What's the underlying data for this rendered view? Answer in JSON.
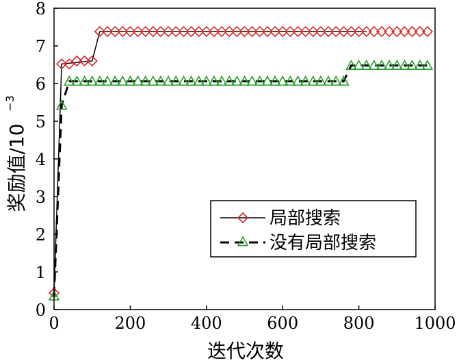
{
  "chart_data": {
    "type": "line",
    "xlabel": "迭代次数",
    "ylabel_main": "奖励值/10",
    "ylabel_exp": "−3",
    "xlim": [
      0,
      1000
    ],
    "ylim": [
      0,
      8
    ],
    "x_ticks": [
      0,
      200,
      400,
      600,
      800,
      1000
    ],
    "y_ticks": [
      0,
      1,
      2,
      3,
      4,
      5,
      6,
      7,
      8
    ],
    "grid": false,
    "legend_position": "center-right",
    "series": [
      {
        "name": "局部搜索",
        "color": "#d62728",
        "marker": "diamond",
        "line_style": "solid",
        "line_color": "#000000",
        "line_points": [
          [
            0,
            0.44
          ],
          [
            20,
            6.52
          ],
          [
            100,
            6.6
          ],
          [
            120,
            7.38
          ],
          [
            820,
            7.38
          ]
        ],
        "marker_points": [
          [
            0,
            0.44
          ],
          [
            20,
            6.52
          ],
          [
            40,
            6.52
          ],
          [
            60,
            6.6
          ],
          [
            80,
            6.6
          ],
          [
            100,
            6.6
          ],
          [
            120,
            7.38
          ],
          [
            140,
            7.38
          ],
          [
            160,
            7.38
          ],
          [
            180,
            7.38
          ],
          [
            200,
            7.38
          ],
          [
            220,
            7.38
          ],
          [
            240,
            7.38
          ],
          [
            260,
            7.38
          ],
          [
            280,
            7.38
          ],
          [
            300,
            7.38
          ],
          [
            320,
            7.38
          ],
          [
            340,
            7.38
          ],
          [
            360,
            7.38
          ],
          [
            380,
            7.38
          ],
          [
            400,
            7.38
          ],
          [
            420,
            7.38
          ],
          [
            440,
            7.38
          ],
          [
            460,
            7.38
          ],
          [
            480,
            7.38
          ],
          [
            500,
            7.38
          ],
          [
            520,
            7.38
          ],
          [
            540,
            7.38
          ],
          [
            560,
            7.38
          ],
          [
            580,
            7.38
          ],
          [
            600,
            7.38
          ],
          [
            620,
            7.38
          ],
          [
            640,
            7.38
          ],
          [
            660,
            7.38
          ],
          [
            680,
            7.38
          ],
          [
            700,
            7.38
          ],
          [
            720,
            7.38
          ],
          [
            740,
            7.38
          ],
          [
            760,
            7.38
          ],
          [
            780,
            7.38
          ],
          [
            800,
            7.38
          ],
          [
            820,
            7.38
          ],
          [
            840,
            7.38
          ],
          [
            860,
            7.38
          ],
          [
            880,
            7.38
          ],
          [
            900,
            7.38
          ],
          [
            920,
            7.38
          ],
          [
            940,
            7.38
          ],
          [
            960,
            7.38
          ],
          [
            980,
            7.38
          ]
        ]
      },
      {
        "name": "没有局部搜索",
        "color": "#2ca02c",
        "marker": "triangle",
        "line_style": "dashed",
        "line_color": "#000000",
        "line_points": [
          [
            0,
            0.36
          ],
          [
            20,
            5.42
          ],
          [
            40,
            6.06
          ],
          [
            760,
            6.06
          ],
          [
            780,
            6.48
          ],
          [
            980,
            6.48
          ]
        ],
        "marker_points": [
          [
            0,
            0.36
          ],
          [
            20,
            5.42
          ],
          [
            40,
            6.06
          ],
          [
            60,
            6.06
          ],
          [
            80,
            6.06
          ],
          [
            100,
            6.06
          ],
          [
            120,
            6.06
          ],
          [
            140,
            6.06
          ],
          [
            160,
            6.06
          ],
          [
            180,
            6.06
          ],
          [
            200,
            6.06
          ],
          [
            220,
            6.06
          ],
          [
            240,
            6.06
          ],
          [
            260,
            6.06
          ],
          [
            280,
            6.06
          ],
          [
            300,
            6.06
          ],
          [
            320,
            6.06
          ],
          [
            340,
            6.06
          ],
          [
            360,
            6.06
          ],
          [
            380,
            6.06
          ],
          [
            400,
            6.06
          ],
          [
            420,
            6.06
          ],
          [
            440,
            6.06
          ],
          [
            460,
            6.06
          ],
          [
            480,
            6.06
          ],
          [
            500,
            6.06
          ],
          [
            520,
            6.06
          ],
          [
            540,
            6.06
          ],
          [
            560,
            6.06
          ],
          [
            580,
            6.06
          ],
          [
            600,
            6.06
          ],
          [
            620,
            6.06
          ],
          [
            640,
            6.06
          ],
          [
            660,
            6.06
          ],
          [
            680,
            6.06
          ],
          [
            700,
            6.06
          ],
          [
            720,
            6.06
          ],
          [
            740,
            6.06
          ],
          [
            760,
            6.06
          ],
          [
            780,
            6.48
          ],
          [
            800,
            6.48
          ],
          [
            820,
            6.48
          ],
          [
            840,
            6.48
          ],
          [
            860,
            6.48
          ],
          [
            880,
            6.48
          ],
          [
            900,
            6.48
          ],
          [
            920,
            6.48
          ],
          [
            940,
            6.48
          ],
          [
            960,
            6.48
          ],
          [
            980,
            6.48
          ]
        ]
      }
    ]
  }
}
